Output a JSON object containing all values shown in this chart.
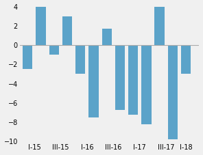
{
  "categories": [
    "I-15",
    "",
    "III-15",
    "",
    "I-16",
    "",
    "III-16",
    "",
    "I-17",
    "",
    "III-17",
    "",
    "I-18"
  ],
  "tick_labels": [
    "I-15",
    "III-15",
    "I-16",
    "III-16",
    "I-17",
    "III-17",
    "I-18"
  ],
  "tick_positions": [
    0.5,
    2.5,
    4.5,
    6.5,
    8.5,
    10.5,
    12
  ],
  "values": [
    -2.5,
    4.0,
    -1.0,
    3.0,
    -3.0,
    -7.5,
    1.7,
    -6.7,
    -7.2,
    -8.2,
    4.0,
    -9.8,
    -3.0
  ],
  "bar_color": "#5ba3c9",
  "ylim": [
    -10,
    4
  ],
  "yticks": [
    -10,
    -8,
    -6,
    -4,
    -2,
    0,
    2,
    4
  ],
  "background_color": "#f0f0f0",
  "bar_width": 0.75,
  "zero_line_color": "#aaaaaa"
}
